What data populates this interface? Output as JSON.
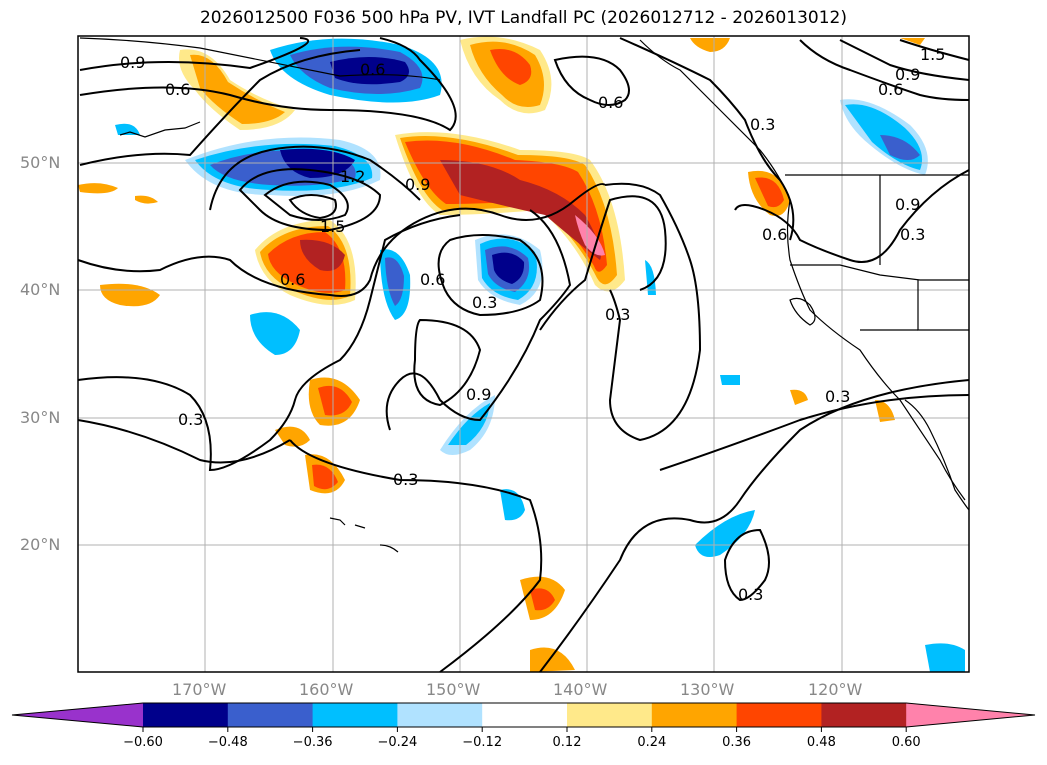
{
  "title": "2026012500 F036 500 hPa PV, IVT Landfall PC (2026012712 - 2026013012)",
  "map": {
    "lat_labels": [
      "50°N",
      "40°N",
      "30°N",
      "20°N"
    ],
    "lon_labels": [
      "170°W",
      "160°W",
      "150°W",
      "140°W",
      "130°W",
      "120°W"
    ],
    "contour_labels": [
      "0.9",
      "0.6",
      "0.6",
      "0.6",
      "0.9",
      "0.3",
      "0.9",
      "0.6",
      "1.2",
      "0.9",
      "1.5",
      "0.6",
      "0.6",
      "0.3",
      "0.3",
      "0.3",
      "0.9",
      "0.3",
      "0.3",
      "0.3",
      "0.3",
      "0.6",
      "1.5"
    ]
  },
  "colorbar": {
    "ticks": [
      "−0.60",
      "−0.48",
      "−0.36",
      "−0.24",
      "−0.12",
      "0.12",
      "0.24",
      "0.36",
      "0.48",
      "0.60"
    ],
    "colors": [
      "#9932cc",
      "#00008b",
      "#3a5fcd",
      "#00bfff",
      "#b0e2ff",
      "#ffffff",
      "#ffe98a",
      "#ffa500",
      "#ff4500",
      "#b22222",
      "#ff82ab"
    ]
  }
}
